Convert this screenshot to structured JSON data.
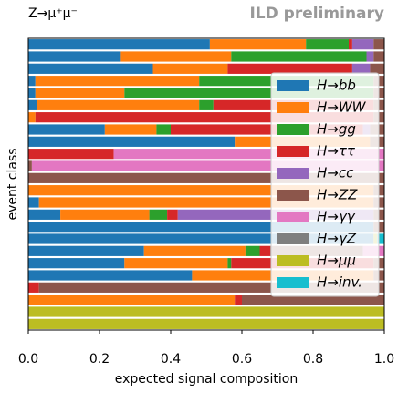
{
  "chart_data": {
    "type": "stacked_barh",
    "title": "Z→μ⁺μ⁻",
    "annotation": "ILD preliminary",
    "xlabel": "expected signal composition",
    "ylabel": "event class",
    "categories": [
      null,
      null,
      null,
      null,
      null,
      null,
      null,
      null,
      null,
      null,
      null,
      null,
      null,
      null,
      null,
      null,
      null,
      null,
      null,
      null,
      null,
      null,
      null,
      null
    ],
    "series": [
      {
        "name": "H→bb",
        "color": "#1f77b4",
        "values": [
          0.51,
          0.26,
          0.35,
          0.02,
          0.02,
          0.025,
          0,
          0.215,
          0.58,
          0,
          0,
          0,
          0,
          0.03,
          0.09,
          0.97,
          0.97,
          0.325,
          0.27,
          0.46,
          0,
          0,
          0,
          0
        ]
      },
      {
        "name": "H→WW",
        "color": "#ff7f0e",
        "values": [
          0.27,
          0.31,
          0.21,
          0.46,
          0.25,
          0.455,
          0.02,
          0.145,
          0.38,
          0,
          0,
          0,
          0.97,
          0.94,
          0.25,
          0,
          0,
          0.285,
          0.29,
          0.51,
          0,
          0.58,
          0,
          0
        ]
      },
      {
        "name": "H→gg",
        "color": "#2ca02c",
        "values": [
          0.12,
          0.38,
          0,
          0.49,
          0.7,
          0.04,
          0,
          0.04,
          0,
          0,
          0,
          0,
          0,
          0,
          0.05,
          0,
          0,
          0.04,
          0.01,
          0,
          0,
          0,
          0,
          0
        ]
      },
      {
        "name": "H→ττ",
        "color": "#d62728",
        "values": [
          0.01,
          0,
          0.35,
          0,
          0,
          0.45,
          0.95,
          0.54,
          0,
          0.24,
          0,
          0,
          0,
          0,
          0.03,
          0,
          0,
          0.03,
          0.4,
          0,
          0.03,
          0.02,
          0,
          0
        ]
      },
      {
        "name": "H→cc",
        "color": "#9467bd",
        "values": [
          0.06,
          0.02,
          0.05,
          0,
          0,
          0,
          0,
          0.02,
          0,
          0,
          0,
          0,
          0,
          0,
          0.55,
          0,
          0,
          0,
          0,
          0,
          0,
          0,
          0,
          0
        ]
      },
      {
        "name": "H→ZZ",
        "color": "#8c564b",
        "values": [
          0.03,
          0.03,
          0.04,
          0.03,
          0.03,
          0.03,
          0.03,
          0.04,
          0.04,
          0,
          0.01,
          1,
          0.03,
          0.03,
          0.03,
          0.03,
          0,
          0.26,
          0.03,
          0.03,
          0.97,
          0.4,
          0,
          0
        ]
      },
      {
        "name": "H→γγ",
        "color": "#e377c2",
        "values": [
          0,
          0,
          0,
          0,
          0,
          0,
          0,
          0,
          0,
          0.76,
          0.99,
          0,
          0,
          0,
          0,
          0,
          0,
          0.06,
          0,
          0,
          0,
          0,
          0,
          0
        ]
      },
      {
        "name": "H→γZ",
        "color": "#7f7f7f",
        "values": [
          0,
          0,
          0,
          0,
          0,
          0,
          0,
          0,
          0,
          0,
          0,
          0,
          0,
          0,
          0,
          0,
          0,
          0,
          0,
          0,
          0,
          0,
          0,
          0
        ]
      },
      {
        "name": "H→μμ",
        "color": "#bcbd22",
        "values": [
          0,
          0,
          0,
          0,
          0,
          0,
          0,
          0,
          0,
          0,
          0,
          0,
          0,
          0,
          0,
          0,
          0.01,
          0,
          0,
          0,
          0,
          0,
          1,
          1
        ]
      },
      {
        "name": "H→inv.",
        "color": "#17becf",
        "values": [
          0,
          0,
          0,
          0,
          0,
          0,
          0,
          0,
          0,
          0,
          0,
          0,
          0,
          0,
          0,
          0,
          0.02,
          0,
          0,
          0,
          0,
          0,
          0,
          0
        ]
      }
    ],
    "xlim": [
      0,
      1
    ],
    "xticks": [
      {
        "value": 0,
        "label": "0.0"
      },
      0.2,
      0.4,
      0.6,
      0.8,
      {
        "value": 1,
        "label": "1.0"
      }
    ],
    "legend": "center right"
  }
}
